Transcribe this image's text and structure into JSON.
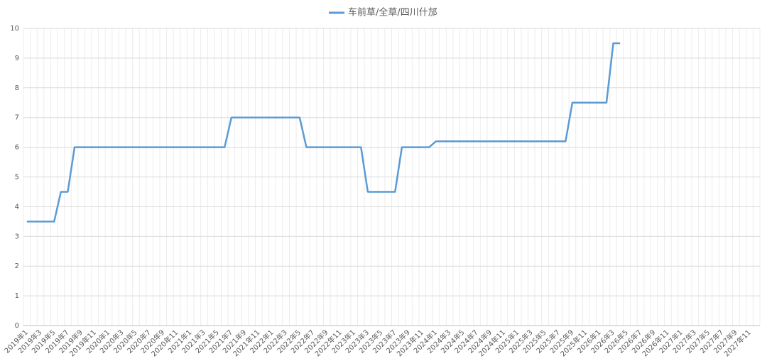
{
  "chart_data": {
    "type": "line",
    "categories": [
      "2019年1",
      null,
      "2019年3",
      null,
      "2019年5",
      null,
      "2019年7",
      null,
      "2019年9",
      null,
      "2019年11",
      null,
      "2020年1",
      null,
      "2020年3",
      null,
      "2020年5",
      null,
      "2020年7",
      null,
      "2020年9",
      null,
      "2020年11",
      null,
      "2021年1",
      null,
      "2021年3",
      null,
      "2021年5",
      null,
      "2021年7",
      null,
      "2021年9",
      null,
      "2021年11",
      null,
      "2022年1",
      null,
      "2022年3",
      null,
      "2022年5",
      null,
      "2022年7",
      null,
      "2022年9",
      null,
      "2022年11",
      null,
      "2023年1",
      null,
      "2023年3",
      null,
      "2023年5",
      null,
      "2023年7",
      null,
      "2023年9",
      null,
      "2023年11",
      null,
      "2024年1",
      null,
      "2024年3",
      null,
      "2024年5",
      null,
      "2024年7",
      null,
      "2024年9",
      null,
      "2024年11",
      null,
      "2025年1",
      null,
      "2025年3",
      null,
      "2025年5",
      null,
      "2025年7",
      null,
      "2025年9",
      null,
      "2025年11",
      null,
      "2026年1",
      null,
      "2026年3",
      null,
      "2026年5",
      null,
      "2026年7",
      null,
      "2026年9",
      null,
      "2026年11",
      null,
      "2027年1",
      null,
      "2027年3",
      null,
      "2027年5",
      null,
      "2027年7",
      null,
      "2027年9",
      null,
      "2027年11",
      null
    ],
    "series": [
      {
        "name": "车前草/全草/四川什邡",
        "color": "#5b9bd5",
        "values": [
          3.5,
          3.5,
          3.5,
          3.5,
          3.5,
          4.5,
          4.5,
          6,
          6,
          6,
          6,
          6,
          6,
          6,
          6,
          6,
          6,
          6,
          6,
          6,
          6,
          6,
          6,
          6,
          6,
          6,
          6,
          6,
          6,
          6,
          7,
          7,
          7,
          7,
          7,
          7,
          7,
          7,
          7,
          7,
          7,
          6,
          6,
          6,
          6,
          6,
          6,
          6,
          6,
          6,
          4.5,
          4.5,
          4.5,
          4.5,
          4.5,
          6,
          6,
          6,
          6,
          6,
          6.2,
          6.2,
          6.2,
          6.2,
          6.2,
          6.2,
          6.2,
          6.2,
          6.2,
          6.2,
          6.2,
          6.2,
          6.2,
          6.2,
          6.2,
          6.2,
          6.2,
          6.2,
          6.2,
          6.2,
          7.5,
          7.5,
          7.5,
          7.5,
          7.5,
          7.5,
          9.5,
          9.5,
          null,
          null,
          null,
          null,
          null,
          null,
          null,
          null,
          null,
          null,
          null,
          null,
          null,
          null,
          null,
          null,
          null,
          null,
          null,
          null
        ]
      }
    ],
    "ylim": [
      0,
      10
    ],
    "yticks": [
      0,
      1,
      2,
      3,
      4,
      5,
      6,
      7,
      8,
      9,
      10
    ],
    "grid": true,
    "legend": "top"
  }
}
